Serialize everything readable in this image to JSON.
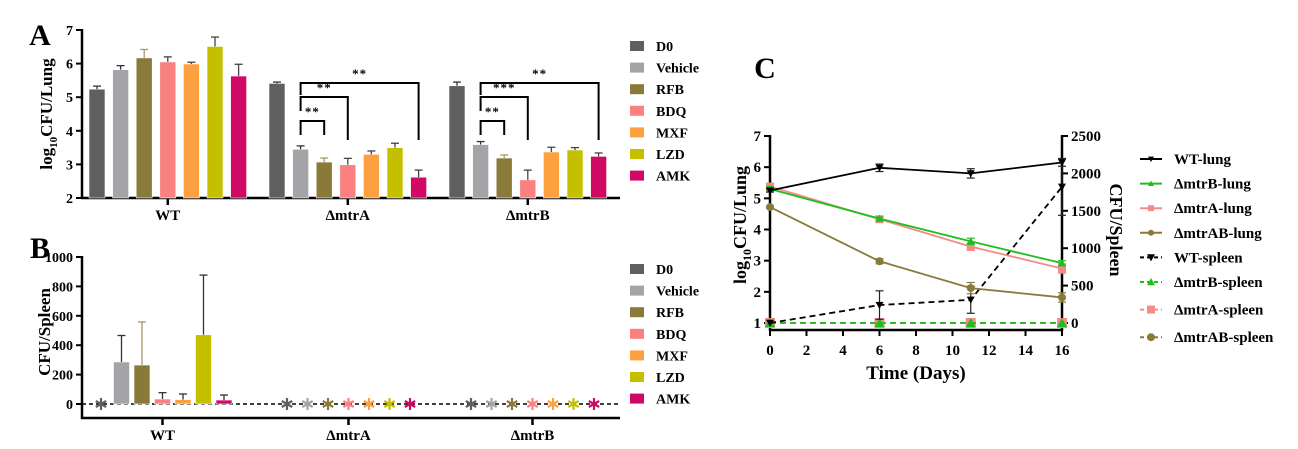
{
  "colors": {
    "D0": "#5f5f5f",
    "Vehicle": "#a3a3a8",
    "RFB": "#8a7a3a",
    "BDQ": "#fb8080",
    "MXF": "#fda040",
    "LZD": "#c4c000",
    "AMK": "#d00a64",
    "WT": "#000000",
    "mtrB": "#1cc01c",
    "mtrA": "#f58a8a",
    "mtrAB": "#8a7a3a"
  },
  "chart_data": [
    {
      "panel_label": "A",
      "type": "bar",
      "ylabel_main": "log",
      "ylabel_sub": "10",
      "ylabel_rest": "CFU/Lung",
      "ylim": [
        2,
        7
      ],
      "yticks": [
        "2",
        "3",
        "4",
        "5",
        "6",
        "7"
      ],
      "categories": [
        "WT",
        "ΔmtrA",
        "ΔmtrB"
      ],
      "series": [
        {
          "name": "D0",
          "values": [
            5.24,
            5.41,
            5.34
          ],
          "errors": [
            0.09,
            0.04,
            0.11
          ]
        },
        {
          "name": "Vehicle",
          "values": [
            5.82,
            3.45,
            3.59
          ],
          "errors": [
            0.12,
            0.1,
            0.09
          ]
        },
        {
          "name": "RFB",
          "values": [
            6.17,
            3.07,
            3.19
          ],
          "errors": [
            0.25,
            0.12,
            0.09
          ]
        },
        {
          "name": "BDQ",
          "values": [
            6.05,
            2.99,
            2.54
          ],
          "errors": [
            0.15,
            0.19,
            0.29
          ]
        },
        {
          "name": "MXF",
          "values": [
            5.99,
            3.3,
            3.37
          ],
          "errors": [
            0.05,
            0.1,
            0.14
          ]
        },
        {
          "name": "LZD",
          "values": [
            6.51,
            3.5,
            3.43
          ],
          "errors": [
            0.28,
            0.13,
            0.07
          ]
        },
        {
          "name": "AMK",
          "values": [
            5.63,
            2.62,
            3.24
          ],
          "errors": [
            0.35,
            0.21,
            0.1
          ]
        }
      ],
      "significance": [
        {
          "group": "ΔmtrA",
          "from": "Vehicle",
          "to": "RFB",
          "label": "**",
          "level": 1
        },
        {
          "group": "ΔmtrA",
          "from": "Vehicle",
          "to": "BDQ",
          "label": "**",
          "level": 2
        },
        {
          "group": "ΔmtrA",
          "from": "Vehicle",
          "to": "AMK",
          "label": "**",
          "level": 3
        },
        {
          "group": "ΔmtrB",
          "from": "Vehicle",
          "to": "RFB",
          "label": "**",
          "level": 1
        },
        {
          "group": "ΔmtrB",
          "from": "Vehicle",
          "to": "BDQ",
          "label": "***",
          "level": 2
        },
        {
          "group": "ΔmtrB",
          "from": "Vehicle",
          "to": "AMK",
          "label": "**",
          "level": 3
        }
      ],
      "legend": [
        "D0",
        "Vehicle",
        "RFB",
        "BDQ",
        "MXF",
        "LZD",
        "AMK"
      ],
      "legend_position": "right"
    },
    {
      "panel_label": "B",
      "type": "bar",
      "ylabel": "CFU/Spleen",
      "ylim": [
        -100,
        1000
      ],
      "yticks": [
        "0",
        "200",
        "400",
        "600",
        "800",
        "1000"
      ],
      "categories": [
        "WT",
        "ΔmtrA",
        "ΔmtrB"
      ],
      "zero_marker": "*",
      "series": [
        {
          "name": "D0",
          "values": [
            0,
            0,
            0
          ],
          "errors": [
            0,
            0,
            0
          ]
        },
        {
          "name": "Vehicle",
          "values": [
            286,
            0,
            0
          ],
          "errors": [
            180,
            0,
            0
          ]
        },
        {
          "name": "RFB",
          "values": [
            265,
            0,
            0
          ],
          "errors": [
            293,
            0,
            0
          ]
        },
        {
          "name": "BDQ",
          "values": [
            34,
            0,
            0
          ],
          "errors": [
            43,
            0,
            0
          ]
        },
        {
          "name": "MXF",
          "values": [
            30,
            0,
            0
          ],
          "errors": [
            38,
            0,
            0
          ]
        },
        {
          "name": "LZD",
          "values": [
            471,
            0,
            0
          ],
          "errors": [
            406,
            0,
            0
          ]
        },
        {
          "name": "AMK",
          "values": [
            27,
            0,
            0
          ],
          "errors": [
            34,
            0,
            0
          ]
        }
      ],
      "legend": [
        "D0",
        "Vehicle",
        "RFB",
        "BDQ",
        "MXF",
        "LZD",
        "AMK"
      ],
      "legend_position": "right"
    },
    {
      "panel_label": "C",
      "type": "line",
      "xlabel": "Time (Days)",
      "ylabel_left_main": "log",
      "ylabel_left_sub": "10",
      "ylabel_left_rest": "CFU/Lung",
      "ylabel_right": "CFU/Spleen",
      "xlim": [
        0,
        16
      ],
      "ylim_left": [
        1,
        7
      ],
      "ylim_right": [
        0,
        2500
      ],
      "xticks": [
        "0",
        "2",
        "4",
        "6",
        "8",
        "10",
        "12",
        "14",
        "16"
      ],
      "yticks_left": [
        "1",
        "2",
        "3",
        "4",
        "5",
        "6",
        "7"
      ],
      "yticks_right": [
        "0",
        "500",
        "1000",
        "1500",
        "2000",
        "2500"
      ],
      "x": [
        0,
        6,
        11,
        16
      ],
      "series": [
        {
          "name": "WT-lung",
          "axis": "left",
          "style": "solid",
          "marker": "triangle-down",
          "color_key": "WT",
          "values": [
            5.25,
            5.98,
            5.8,
            6.15
          ],
          "errors": [
            0.05,
            0.12,
            0.15,
            0.12
          ]
        },
        {
          "name": "ΔmtrB-lung",
          "axis": "left",
          "style": "solid",
          "marker": "triangle-up",
          "color_key": "mtrB",
          "values": [
            5.3,
            4.35,
            3.62,
            2.92
          ],
          "errors": [
            0.08,
            0.05,
            0.1,
            0.08
          ]
        },
        {
          "name": "ΔmtrA-lung",
          "axis": "left",
          "style": "solid",
          "marker": "square",
          "color_key": "mtrA",
          "values": [
            5.38,
            4.33,
            3.45,
            2.75
          ],
          "errors": [
            0.05,
            0.05,
            0.12,
            0.15
          ]
        },
        {
          "name": "ΔmtrAB-lung",
          "axis": "left",
          "style": "solid",
          "marker": "circle",
          "color_key": "mtrAB",
          "values": [
            4.72,
            2.98,
            2.12,
            1.82
          ],
          "errors": [
            0.03,
            0.08,
            0.18,
            0.15
          ]
        },
        {
          "name": "WT-spleen",
          "axis": "right",
          "style": "dashed",
          "marker": "triangle-down",
          "color_key": "WT",
          "values": [
            0,
            240,
            310,
            1820
          ],
          "errors": [
            0,
            190,
            180,
            380
          ]
        },
        {
          "name": "ΔmtrB-spleen",
          "axis": "right",
          "style": "dashed",
          "marker": "triangle-up",
          "color_key": "mtrB",
          "values": [
            0,
            0,
            0,
            0
          ],
          "errors": [
            0,
            0,
            0,
            0
          ]
        },
        {
          "name": "ΔmtrA-spleen",
          "axis": "right",
          "style": "dashed",
          "marker": "square",
          "color_key": "mtrA",
          "values": [
            0,
            0,
            0,
            0
          ],
          "errors": [
            0,
            0,
            0,
            0
          ]
        },
        {
          "name": "ΔmtrAB-spleen",
          "axis": "right",
          "style": "dashed",
          "marker": "circle",
          "color_key": "mtrAB",
          "values": [
            0,
            0,
            0,
            0
          ],
          "errors": [
            0,
            0,
            0,
            0
          ]
        }
      ],
      "legend": [
        "WT-lung",
        "ΔmtrB-lung",
        "ΔmtrA-lung",
        "ΔmtrAB-lung",
        "WT-spleen",
        "ΔmtrB-spleen",
        "ΔmtrA-spleen",
        "ΔmtrAB-spleen"
      ],
      "legend_position": "right"
    }
  ]
}
